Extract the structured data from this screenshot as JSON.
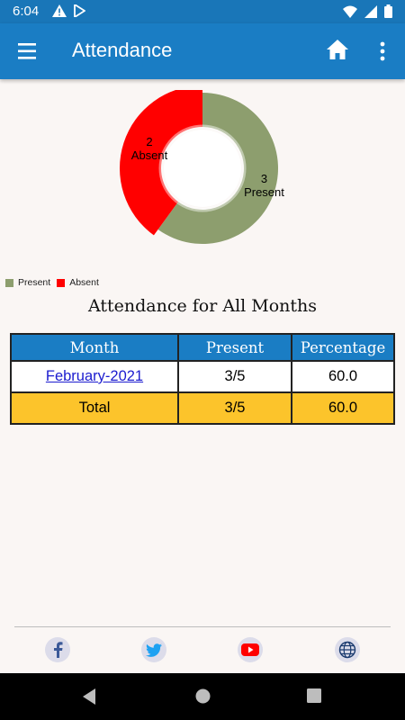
{
  "status_bar": {
    "time": "6:04"
  },
  "app_bar": {
    "title": "Attendance"
  },
  "chart_data": {
    "type": "pie",
    "categories": [
      "Present",
      "Absent"
    ],
    "values": [
      3,
      2
    ],
    "slice_labels": [
      {
        "count": "3",
        "label": "Present"
      },
      {
        "count": "2",
        "label": "Absent"
      }
    ],
    "colors": [
      "#8d9e6e",
      "#ff0000"
    ],
    "legend": [
      "Present",
      "Absent"
    ]
  },
  "section_title": "Attendance for All Months",
  "table": {
    "headers": [
      "Month",
      "Present",
      "Percentage"
    ],
    "rows": [
      {
        "month": "February-2021",
        "present": "3/5",
        "percentage": "60.0"
      }
    ],
    "total": {
      "label": "Total",
      "present": "3/5",
      "percentage": "60.0"
    }
  },
  "footer_icons": [
    "facebook-icon",
    "twitter-icon",
    "youtube-icon",
    "globe-icon"
  ]
}
